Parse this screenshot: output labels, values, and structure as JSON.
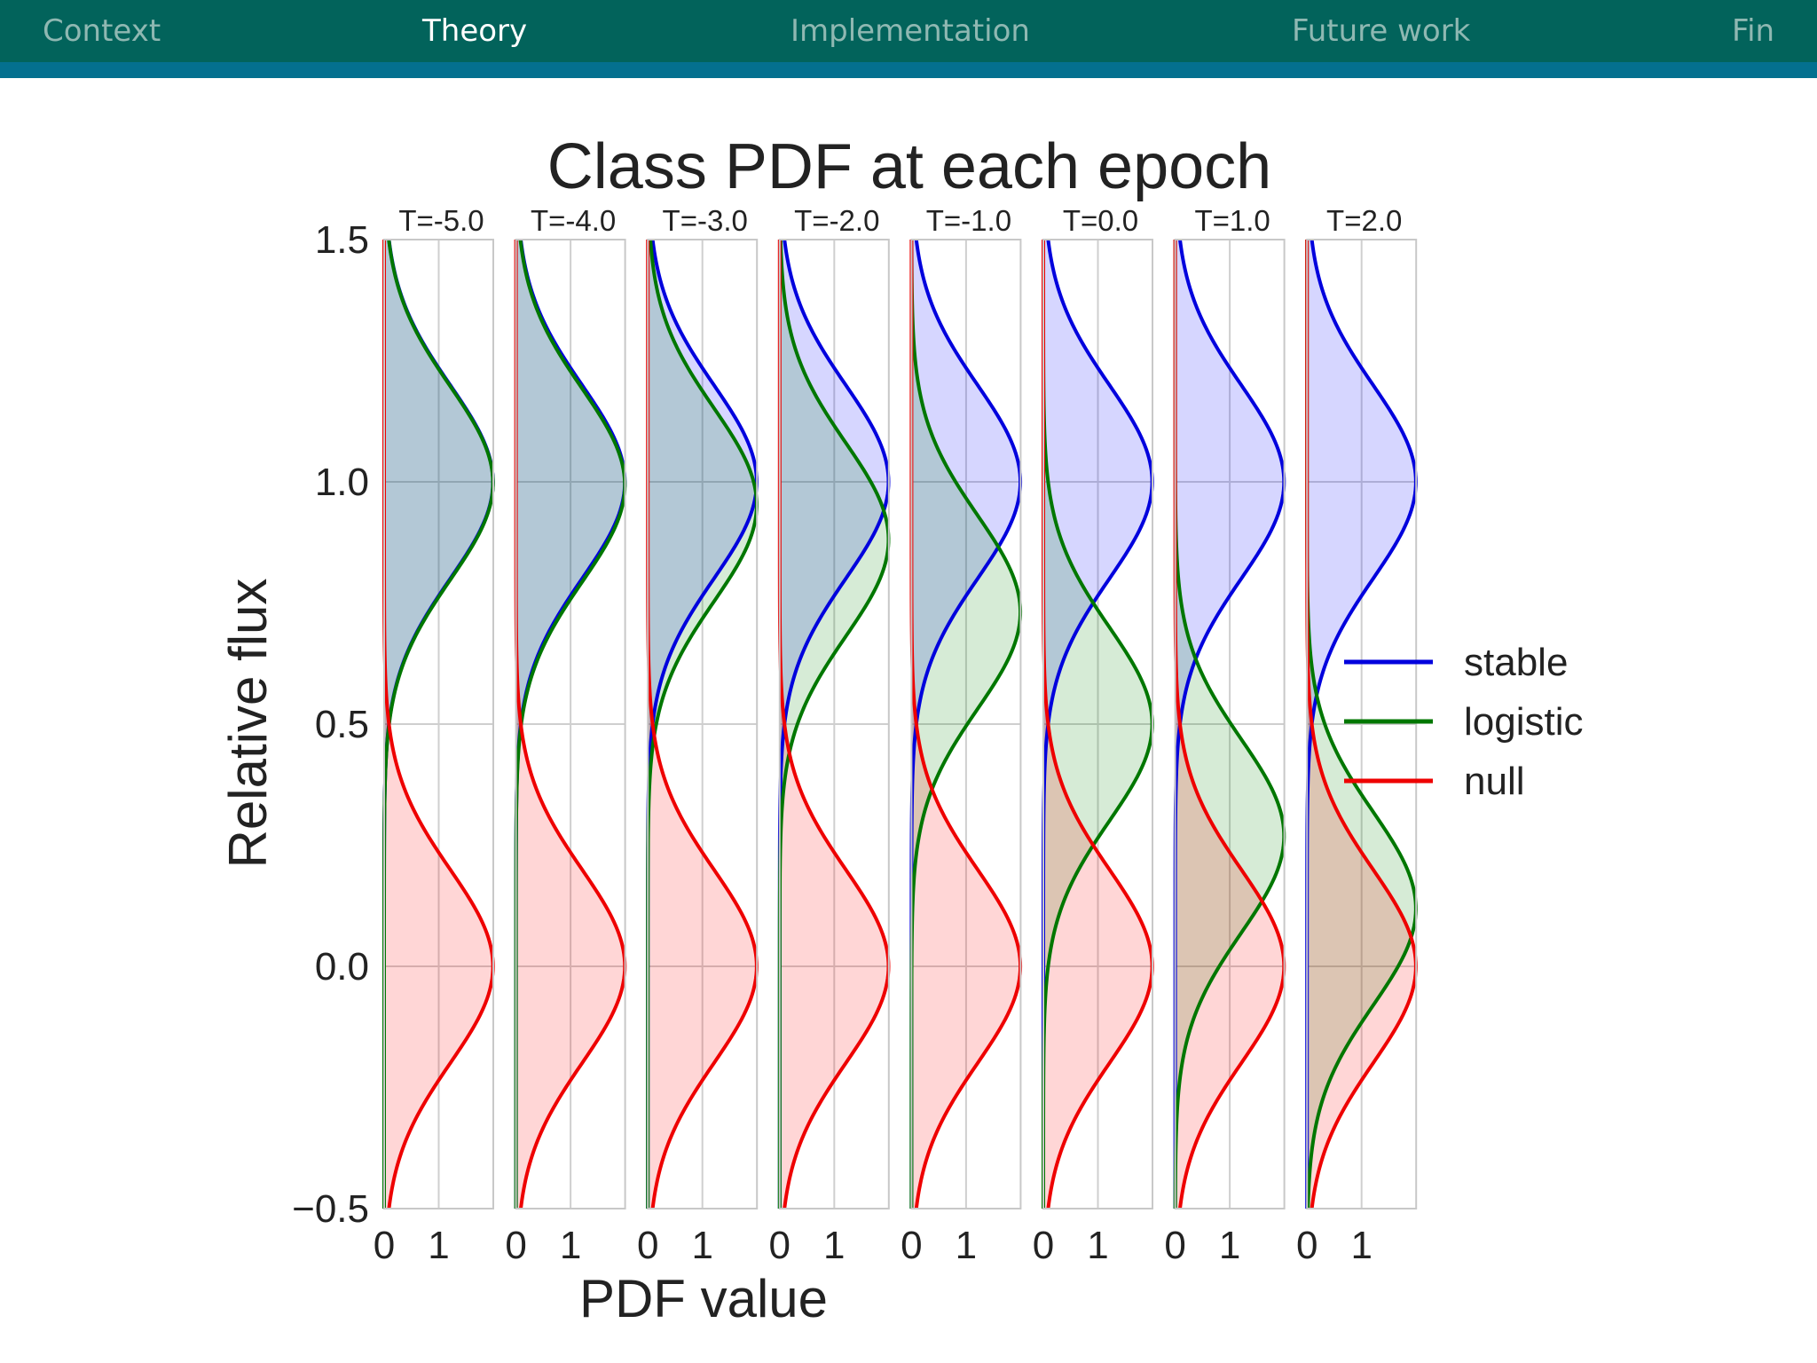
{
  "nav": {
    "items": [
      {
        "label": "Context",
        "active": false
      },
      {
        "label": "Theory",
        "active": true
      },
      {
        "label": "Implementation",
        "active": false
      },
      {
        "label": "Future work",
        "active": false
      },
      {
        "label": "Fin",
        "active": false
      }
    ]
  },
  "colors": {
    "nav_bg": "#02635b",
    "nav_accent": "#04708f",
    "stable": "#0000dd",
    "logistic": "#007700",
    "null": "#ee0000"
  },
  "chart_data": {
    "type": "area",
    "title": "Class PDF at each epoch",
    "xlabel": "PDF value",
    "ylabel": "Relative flux",
    "ylim": [
      -0.5,
      1.5
    ],
    "xlim": [
      0,
      2
    ],
    "y_ticks": [
      "1.5",
      "1.0",
      "0.5",
      "0.0",
      "−0.5"
    ],
    "y_tick_values": [
      1.5,
      1.0,
      0.5,
      0.0,
      -0.5
    ],
    "x_ticks": [
      "0",
      "1"
    ],
    "x_tick_values": [
      0,
      1
    ],
    "grid": true,
    "legend_position": "right",
    "distribution_sigma": 0.2,
    "panels": [
      {
        "label": "T=-5.0",
        "epoch": -5.0,
        "stable_mean": 1.0,
        "logistic_mean": 0.9975,
        "null_mean": 0.0
      },
      {
        "label": "T=-4.0",
        "epoch": -4.0,
        "stable_mean": 1.0,
        "logistic_mean": 0.993,
        "null_mean": 0.0
      },
      {
        "label": "T=-3.0",
        "epoch": -3.0,
        "stable_mean": 1.0,
        "logistic_mean": 0.9526,
        "null_mean": 0.0
      },
      {
        "label": "T=-2.0",
        "epoch": -2.0,
        "stable_mean": 1.0,
        "logistic_mean": 0.8808,
        "null_mean": 0.0
      },
      {
        "label": "T=-1.0",
        "epoch": -1.0,
        "stable_mean": 1.0,
        "logistic_mean": 0.7311,
        "null_mean": 0.0
      },
      {
        "label": "T=0.0",
        "epoch": 0.0,
        "stable_mean": 1.0,
        "logistic_mean": 0.5,
        "null_mean": 0.0
      },
      {
        "label": "T=1.0",
        "epoch": 1.0,
        "stable_mean": 1.0,
        "logistic_mean": 0.2689,
        "null_mean": 0.0
      },
      {
        "label": "T=2.0",
        "epoch": 2.0,
        "stable_mean": 1.0,
        "logistic_mean": 0.1192,
        "null_mean": 0.0
      }
    ],
    "series": [
      {
        "name": "stable",
        "color": "#0000dd",
        "fill": "#0000ff"
      },
      {
        "name": "logistic",
        "color": "#007700",
        "fill": "#008000"
      },
      {
        "name": "null",
        "color": "#ee0000",
        "fill": "#ff0000"
      }
    ]
  }
}
